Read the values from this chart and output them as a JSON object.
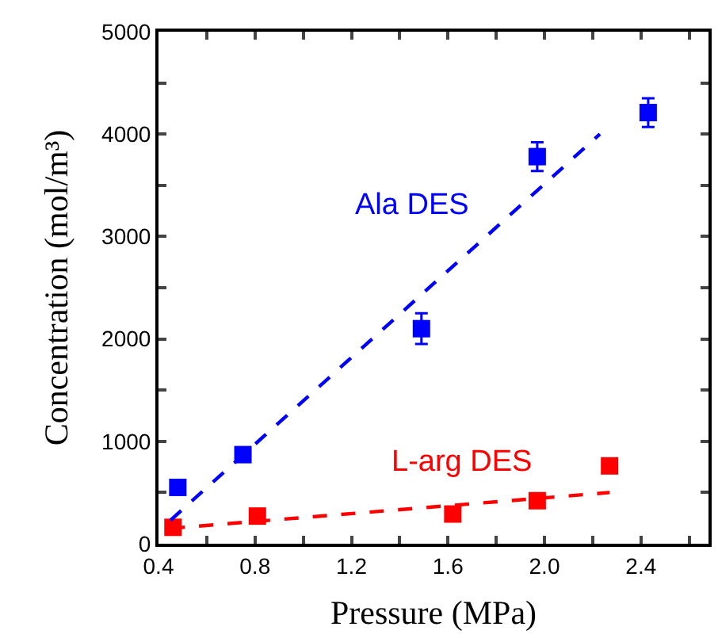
{
  "chart_data": {
    "type": "scatter",
    "xlabel": "Pressure (MPa)",
    "ylabel": "Concentration (mol/m³)",
    "xlim": [
      0.4,
      2.68
    ],
    "ylim": [
      0,
      5000
    ],
    "xticks": [
      {
        "value": 0.4,
        "label": "0.4"
      },
      {
        "value": 0.6,
        "label": null
      },
      {
        "value": 0.8,
        "label": "0.8"
      },
      {
        "value": 1.0,
        "label": null
      },
      {
        "value": 1.2,
        "label": "1.2"
      },
      {
        "value": 1.4,
        "label": null
      },
      {
        "value": 1.6,
        "label": "1.6"
      },
      {
        "value": 1.8,
        "label": null
      },
      {
        "value": 2.0,
        "label": "2.0"
      },
      {
        "value": 2.2,
        "label": null
      },
      {
        "value": 2.4,
        "label": "2.4"
      },
      {
        "value": 2.6,
        "label": null
      }
    ],
    "yticks": [
      0,
      {
        "value": 500,
        "label": null
      },
      1000,
      {
        "value": 1500,
        "label": null
      },
      2000,
      {
        "value": 2500,
        "label": null
      },
      3000,
      {
        "value": 3500,
        "label": null
      },
      4000,
      {
        "value": 4500,
        "label": null
      },
      5000
    ],
    "legend": false,
    "marker": "square",
    "series": [
      {
        "name": "Ala DES",
        "color": "#0000ff",
        "x": [
          0.48,
          0.75,
          1.49,
          1.97,
          2.43
        ],
        "values": [
          550,
          870,
          2100,
          3780,
          4210
        ],
        "errors": [
          null,
          null,
          150,
          140,
          140
        ]
      },
      {
        "name": "L-arg DES",
        "color": "#ff0000",
        "x": [
          0.46,
          0.81,
          1.62,
          1.97,
          2.27
        ],
        "values": [
          160,
          270,
          290,
          420,
          760
        ]
      },
      {
        "type": "line",
        "line_style": "dashed",
        "marker": "none",
        "color": "#0000ff",
        "x": [
          0.45,
          2.23
        ],
        "values": [
          230,
          4000
        ]
      },
      {
        "type": "line",
        "line_style": "dashed",
        "marker": "none",
        "color": "#ff0000",
        "x": [
          0.45,
          2.27
        ],
        "values": [
          150,
          500
        ]
      }
    ]
  }
}
